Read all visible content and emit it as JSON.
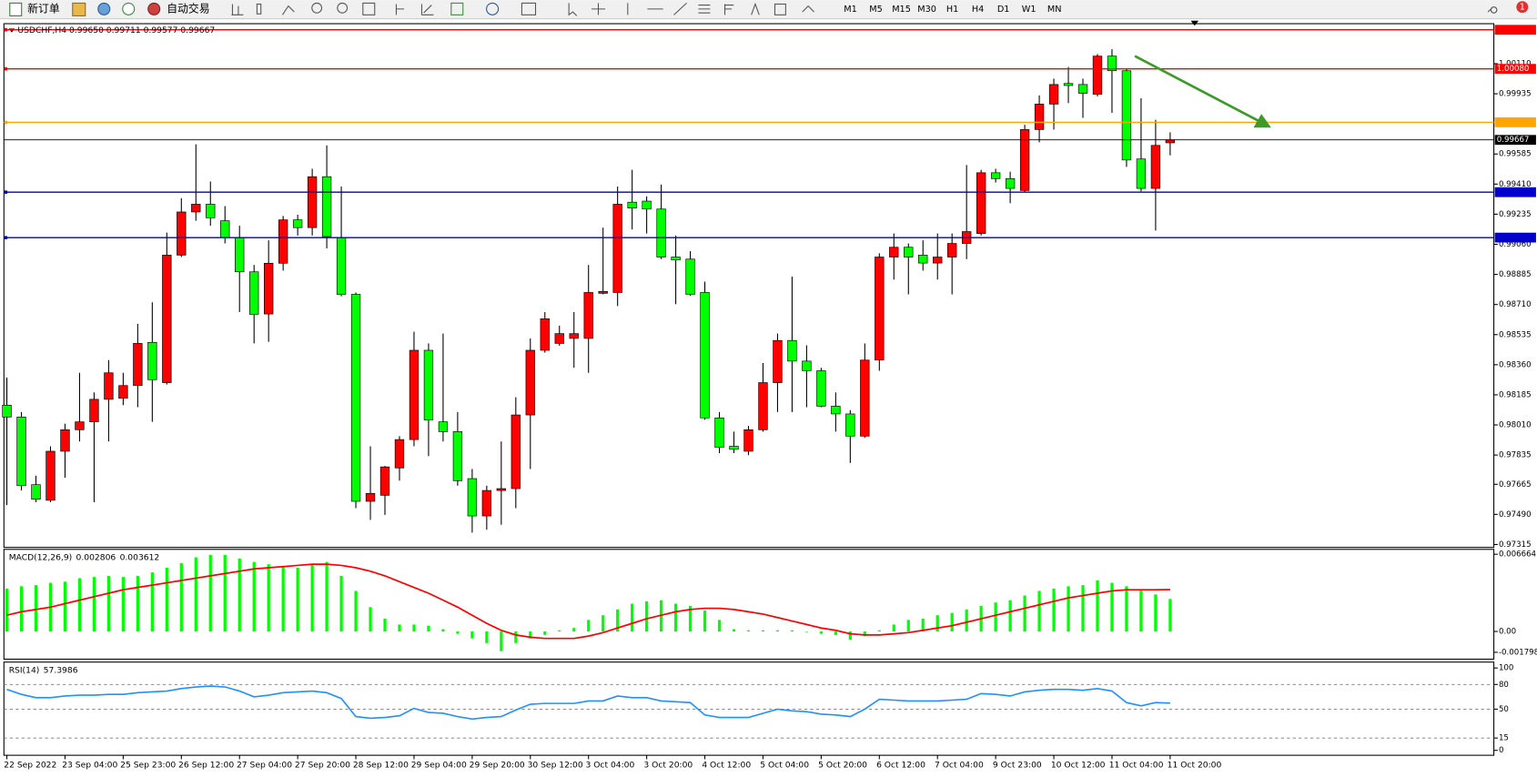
{
  "toolbar": {
    "new_order": "新订单",
    "auto_trading": "自动交易",
    "timeframes": [
      "M1",
      "M5",
      "M15",
      "M30",
      "H1",
      "H4",
      "D1",
      "W1",
      "MN"
    ],
    "notifications": 1
  },
  "chart_data": [
    {
      "type": "candlestick",
      "title": "USDCHF,H4  0.99650 0.99711 0.99577 0.99667",
      "categories": [
        "22 Sep 2022",
        null,
        null,
        null,
        "23 Sep 04:00",
        null,
        null,
        null,
        "25 Sep 23:00",
        null,
        null,
        null,
        "26 Sep 12:00",
        null,
        null,
        null,
        "27 Sep 04:00",
        null,
        null,
        null,
        "27 Sep 20:00",
        null,
        null,
        null,
        "28 Sep 12:00",
        null,
        null,
        null,
        "29 Sep 04:00",
        null,
        null,
        null,
        "29 Sep 20:00",
        null,
        null,
        null,
        "30 Sep 12:00",
        null,
        null,
        null,
        "3 Oct 04:00",
        null,
        null,
        null,
        "3 Oct 20:00",
        null,
        null,
        null,
        "4 Oct 12:00",
        null,
        null,
        null,
        "5 Oct 04:00",
        null,
        null,
        null,
        "5 Oct 20:00",
        null,
        null,
        null,
        "6 Oct 12:00",
        null,
        null,
        null,
        "7 Oct 04:00",
        null,
        null,
        null,
        "9 Oct 23:00",
        null,
        null,
        null,
        "10 Oct 12:00",
        null,
        null,
        null,
        "11 Oct 04:00",
        null,
        null,
        null,
        "11 Oct 20:00"
      ],
      "open": [
        0.98125,
        0.98056,
        0.97663,
        0.97572,
        0.97857,
        0.97982,
        0.98028,
        0.98159,
        0.98165,
        0.98239,
        0.9849,
        0.98256,
        0.98997,
        0.99248,
        0.99293,
        0.99197,
        0.991,
        0.989,
        0.98655,
        0.9895,
        0.99202,
        0.99157,
        0.99453,
        0.991,
        0.98769,
        0.97566,
        0.97601,
        0.9776,
        0.97925,
        0.98444,
        0.98028,
        0.97971,
        0.97698,
        0.97481,
        0.97629,
        0.9764,
        0.98068,
        0.98444,
        0.98484,
        0.98513,
        0.98513,
        0.98775,
        0.9878,
        0.99305,
        0.99311,
        0.99265,
        0.98986,
        0.98974,
        0.9878,
        0.98051,
        0.97886,
        0.97857,
        0.97982,
        0.98256,
        0.98501,
        0.98381,
        0.98325,
        0.98119,
        0.98074,
        0.97945,
        0.98387,
        0.98986,
        0.99043,
        0.98997,
        0.98951,
        0.98986,
        0.99065,
        0.99123,
        0.99476,
        0.99442,
        0.99373,
        0.99727,
        0.99875,
        0.99995,
        0.99989,
        0.99932,
        1.00154,
        1.00069,
        0.99556,
        0.99385,
        0.9965
      ],
      "high": [
        0.98285,
        0.98085,
        0.97715,
        0.97886,
        0.98017,
        0.98313,
        0.98199,
        0.98387,
        0.98313,
        0.98598,
        0.98723,
        0.99128,
        0.99328,
        0.99641,
        0.99425,
        0.99282,
        0.99168,
        0.9894,
        0.99083,
        0.99225,
        0.99232,
        0.99499,
        0.99635,
        0.99396,
        0.9878,
        0.97886,
        0.97772,
        0.97945,
        0.98552,
        0.98484,
        0.98541,
        0.98085,
        0.97754,
        0.97657,
        0.97914,
        0.98171,
        0.98513,
        0.98666,
        0.98587,
        0.98666,
        0.9894,
        0.99157,
        0.99396,
        0.99493,
        0.99339,
        0.99407,
        0.99111,
        0.9902,
        0.98843,
        0.98085,
        0.97971,
        0.98005,
        0.9837,
        0.98541,
        0.98872,
        0.98473,
        0.98342,
        0.98199,
        0.98096,
        0.98484,
        0.99008,
        0.99123,
        0.99065,
        0.99083,
        0.99123,
        0.99123,
        0.99521,
        0.99493,
        0.99499,
        0.99482,
        0.99755,
        0.99926,
        1.00023,
        1.00091,
        1.00023,
        1.00166,
        1.00194,
        1.0008,
        0.99909,
        0.99784,
        0.99711
      ],
      "low": [
        0.97544,
        0.97629,
        0.97561,
        0.97561,
        0.97703,
        0.97914,
        0.97561,
        0.97914,
        0.98125,
        0.98113,
        0.98028,
        0.98245,
        0.98986,
        0.99197,
        0.99168,
        0.99065,
        0.98666,
        0.98484,
        0.98493,
        0.98907,
        0.99111,
        0.99111,
        0.99036,
        0.98758,
        0.97526,
        0.97458,
        0.97487,
        0.97686,
        0.97886,
        0.97829,
        0.97914,
        0.97657,
        0.97384,
        0.97401,
        0.9743,
        0.97526,
        0.97754,
        0.9843,
        0.9847,
        0.98342,
        0.98313,
        0.98769,
        0.98701,
        0.99146,
        0.99123,
        0.98974,
        0.98712,
        0.9876,
        0.9804,
        0.97846,
        0.97846,
        0.97834,
        0.97971,
        0.98085,
        0.98085,
        0.98113,
        0.98113,
        0.97971,
        0.97789,
        0.97935,
        0.98325,
        0.98855,
        0.98769,
        0.98907,
        0.98855,
        0.98769,
        0.98974,
        0.99111,
        0.99419,
        0.99299,
        0.99365,
        0.99653,
        0.99727,
        0.99881,
        0.99795,
        0.9992,
        0.99824,
        0.9951,
        0.99368,
        0.9914,
        0.99577
      ],
      "close": [
        0.98056,
        0.97657,
        0.97578,
        0.97857,
        0.97982,
        0.98028,
        0.98159,
        0.98313,
        0.98239,
        0.98484,
        0.98273,
        0.98997,
        0.99248,
        0.99293,
        0.99214,
        0.991,
        0.989,
        0.98653,
        0.9895,
        0.99202,
        0.99157,
        0.99453,
        0.99105,
        0.98769,
        0.97566,
        0.97612,
        0.97766,
        0.97925,
        0.98444,
        0.98039,
        0.97971,
        0.97686,
        0.97481,
        0.97629,
        0.9764,
        0.98068,
        0.98444,
        0.98627,
        0.98541,
        0.98541,
        0.9878,
        0.98786,
        0.99293,
        0.99271,
        0.99265,
        0.98986,
        0.98969,
        0.98769,
        0.98051,
        0.9788,
        0.97868,
        0.97982,
        0.98256,
        0.98501,
        0.98381,
        0.98325,
        0.98119,
        0.98074,
        0.97945,
        0.98387,
        0.98986,
        0.99043,
        0.98986,
        0.98951,
        0.98986,
        0.99065,
        0.99134,
        0.99476,
        0.99442,
        0.99385,
        0.99727,
        0.99875,
        0.99989,
        0.99983,
        0.99938,
        1.00154,
        1.00069,
        0.9955,
        0.99385,
        0.99635,
        0.99667
      ],
      "up_color": "#ff0000",
      "down_color": "#00ff00",
      "grid": false,
      "ylim": [
        0.97304,
        1.00331
      ],
      "yticks": [
        {
          "value": 1.0011,
          "label": "1.00110"
        },
        0.99935,
        0.99585,
        {
          "value": 0.9941,
          "label": "0.99410"
        },
        0.99235,
        {
          "value": 0.9906,
          "label": "0.99060"
        },
        0.98885,
        {
          "value": 0.9871,
          "label": "0.98710"
        },
        0.98535,
        {
          "value": 0.9836,
          "label": "0.98360"
        },
        0.98185,
        {
          "value": 0.9801,
          "label": "0.98010"
        },
        0.97835,
        0.97665,
        {
          "value": 0.9749,
          "label": "0.97490"
        },
        0.97315
      ],
      "lines": [
        {
          "value": 1.00307,
          "color": "#ff0000"
        },
        {
          "value": 1.0008,
          "label": "1.00080",
          "color": "#ff0000"
        },
        {
          "value": 0.99769,
          "color": "#ffa500"
        },
        {
          "value": 0.99363,
          "color": "#0000cd"
        },
        {
          "value": 0.99099,
          "color": "#0000cd"
        }
      ]
    },
    {
      "type": "macd",
      "title": "MACD(12,26,9)",
      "series": [
        {
          "style": "histogram",
          "color": "#00ff00",
          "values": [
            0.0037,
            0.0039,
            0.004,
            0.0042,
            0.0043,
            0.0046,
            0.0047,
            0.0048,
            0.0047,
            0.0048,
            0.0051,
            0.0055,
            0.0059,
            0.0064,
            0.0066,
            0.0066,
            0.0063,
            0.006,
            0.0058,
            0.0056,
            0.0055,
            0.0058,
            0.006,
            0.0048,
            0.0035,
            0.0021,
            0.0011,
            0.0006,
            0.0006,
            0.0005,
            0.0002,
            -0.0002,
            -0.0006,
            -0.001,
            -0.0017,
            -0.001,
            -0.0006,
            -0.0003,
            0.0001,
            0.0003,
            0.001,
            0.0014,
            0.0019,
            0.0024,
            0.0026,
            0.0027,
            0.0024,
            0.0022,
            0.0018,
            0.001,
            0.0002,
            0.0001,
            0.0001,
            0.0001,
            0.0001,
            0,
            -0.0002,
            -0.0003,
            -0.0007,
            -0.0004,
            0.0001,
            0.0006,
            0.001,
            0.0011,
            0.0014,
            0.0016,
            0.0019,
            0.0022,
            0.0025,
            0.0027,
            0.0031,
            0.0035,
            0.0037,
            0.0039,
            0.004,
            0.0044,
            0.0042,
            0.0039,
            0.0036,
            0.0032,
            0.002806
          ]
        },
        {
          "style": "line",
          "color": "#ff0000",
          "values": [
            0.0014,
            0.0017,
            0.0019,
            0.0021,
            0.0024,
            0.0027,
            0.003,
            0.0033,
            0.0036,
            0.0038,
            0.004,
            0.0042,
            0.0044,
            0.0046,
            0.0048,
            0.005,
            0.0052,
            0.0054,
            0.0055,
            0.0056,
            0.0057,
            0.0058,
            0.0058,
            0.0057,
            0.0055,
            0.0052,
            0.0048,
            0.0043,
            0.0038,
            0.0033,
            0.0027,
            0.0021,
            0.0014,
            0.0007,
            0.0001,
            -0.0003,
            -0.0005,
            -0.0006,
            -0.0006,
            -0.0006,
            -0.0004,
            -0.0001,
            0.0003,
            0.0007,
            0.0011,
            0.0014,
            0.0017,
            0.0019,
            0.002,
            0.002,
            0.0019,
            0.0017,
            0.0015,
            0.0012,
            0.0009,
            0.0006,
            0.0003,
            0.0001,
            -0.0002,
            -0.0003,
            -0.0003,
            -0.0002,
            -0.0001,
            0.0001,
            0.0003,
            0.0005,
            0.0008,
            0.0011,
            0.0014,
            0.0017,
            0.002,
            0.0023,
            0.0026,
            0.0029,
            0.0031,
            0.0033,
            0.0035,
            0.0036,
            0.0036,
            0.0036,
            0.003612
          ]
        }
      ],
      "grid": false,
      "ylim": [
        -0.001798,
        0.006664
      ],
      "yticks": [
        0.006664,
        {
          "value": 0,
          "label": "0.00"
        },
        -0.001798
      ]
    },
    {
      "type": "line",
      "title": "RSI(14)",
      "color": "#1e90ff",
      "values": [
        74,
        68,
        64,
        64,
        66,
        67,
        67,
        68,
        68,
        70,
        71,
        72,
        75,
        77,
        78,
        77,
        72,
        65,
        67,
        70,
        71,
        72,
        70,
        63,
        41,
        39,
        40,
        42,
        51,
        46,
        45,
        41,
        38,
        40,
        41,
        49,
        56,
        57,
        57,
        57,
        60,
        60,
        66,
        64,
        64,
        60,
        59,
        58,
        43,
        40,
        40,
        40,
        45,
        50,
        48,
        47,
        44,
        43,
        41,
        50,
        62,
        61,
        60,
        60,
        60,
        61,
        62,
        69,
        68,
        66,
        71,
        73,
        74,
        74,
        73,
        75,
        72,
        58,
        54,
        58,
        57.3986
      ],
      "grid": "dashed",
      "ylim": [
        0,
        100
      ],
      "yticks": [
        100,
        80,
        50,
        15,
        0
      ]
    }
  ]
}
